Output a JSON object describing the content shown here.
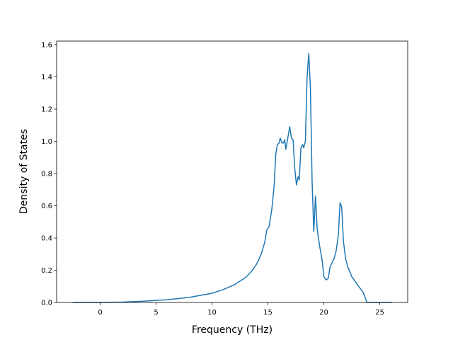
{
  "chart_data": {
    "type": "line",
    "xlabel": "Frequency (THz)",
    "ylabel": "Density of States",
    "x": [
      -2.47,
      0,
      2,
      4,
      6,
      8,
      10,
      11,
      12,
      13,
      13.5,
      14,
      14.4,
      14.7,
      14.9,
      15.1,
      15.35,
      15.55,
      15.7,
      15.85,
      16.0,
      16.1,
      16.25,
      16.4,
      16.5,
      16.6,
      16.75,
      16.95,
      17.1,
      17.25,
      17.4,
      17.55,
      17.7,
      17.8,
      17.95,
      18.1,
      18.2,
      18.35,
      18.5,
      18.65,
      18.8,
      18.95,
      19.1,
      19.25,
      19.4,
      19.6,
      19.85,
      20.0,
      20.2,
      20.4,
      20.55,
      20.9,
      21.1,
      21.3,
      21.45,
      21.6,
      21.75,
      21.95,
      22.15,
      22.5,
      23.0,
      23.5,
      23.7,
      23.85,
      26.08
    ],
    "series": [
      {
        "name": "DOS",
        "color": "#1f77b4",
        "values": [
          0,
          0,
          0.002,
          0.008,
          0.017,
          0.032,
          0.057,
          0.08,
          0.11,
          0.155,
          0.19,
          0.24,
          0.3,
          0.37,
          0.45,
          0.47,
          0.58,
          0.72,
          0.92,
          0.98,
          0.99,
          1.02,
          0.99,
          0.99,
          1.01,
          0.95,
          1.01,
          1.09,
          1.02,
          1.01,
          0.83,
          0.73,
          0.78,
          0.76,
          0.96,
          0.98,
          0.96,
          1.0,
          1.4,
          1.545,
          1.33,
          0.75,
          0.44,
          0.66,
          0.46,
          0.36,
          0.26,
          0.16,
          0.14,
          0.15,
          0.22,
          0.27,
          0.32,
          0.42,
          0.62,
          0.59,
          0.38,
          0.27,
          0.22,
          0.16,
          0.11,
          0.065,
          0.03,
          0,
          0
        ]
      }
    ],
    "xlim": [
      -3.9,
      27.5
    ],
    "xticks": [
      0,
      5,
      10,
      15,
      20,
      25
    ],
    "ylim": [
      0,
      1.622
    ],
    "yticks": [
      {
        "value": 0,
        "label": "0.0"
      },
      {
        "value": 0.2,
        "label": "0.2"
      },
      {
        "value": 0.4,
        "label": "0.4"
      },
      {
        "value": 0.6,
        "label": "0.6"
      },
      {
        "value": 0.8,
        "label": "0.8"
      },
      {
        "value": 1.0,
        "label": "1.0"
      },
      {
        "value": 1.2,
        "label": "1.2"
      },
      {
        "value": 1.4,
        "label": "1.4"
      },
      {
        "value": 1.6,
        "label": "1.6"
      }
    ],
    "grid": false
  }
}
